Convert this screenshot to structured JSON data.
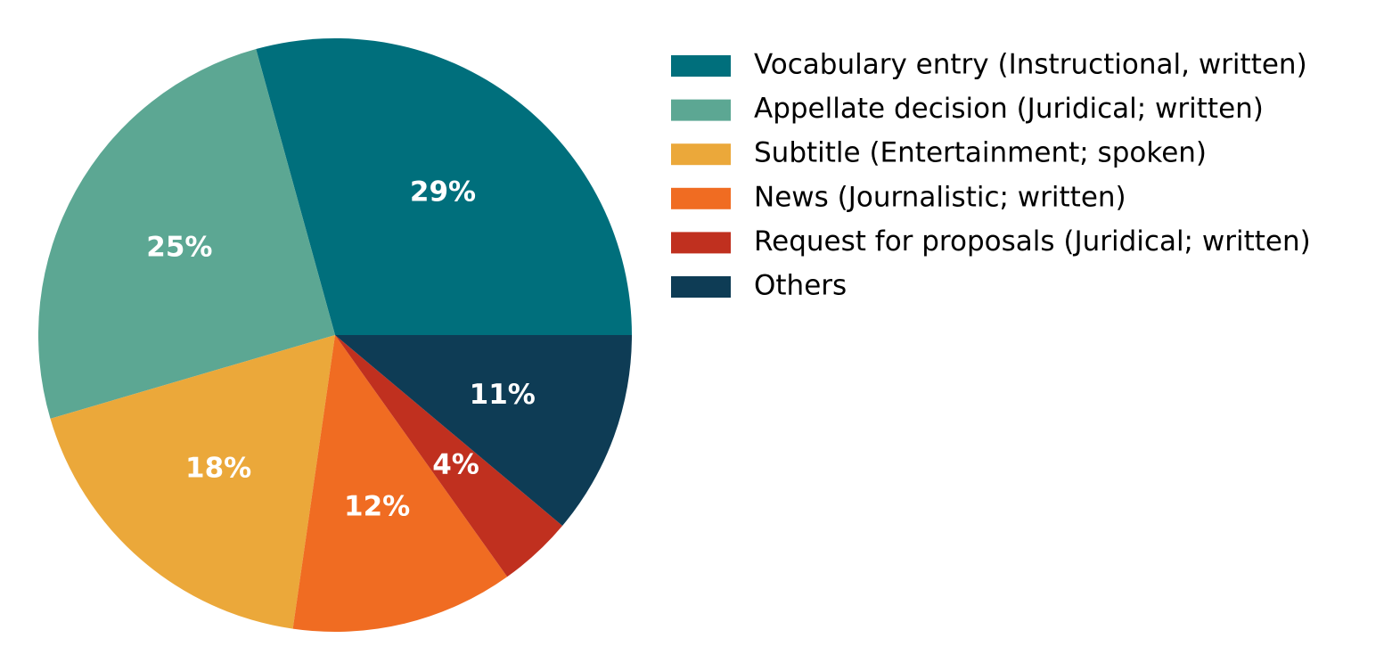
{
  "chart_data": {
    "type": "pie",
    "categories": [
      "Vocabulary entry (Instructional, written)",
      "Appellate decision (Juridical; written)",
      "Subtitle (Entertainment; spoken)",
      "News (Journalistic; written)",
      "Request for proposals (Juridical; written)",
      "Others"
    ],
    "values": [
      29,
      25,
      18,
      12,
      4,
      11
    ],
    "value_labels": [
      "29%",
      "25%",
      "18%",
      "12%",
      "4%",
      "11%"
    ],
    "colors": [
      "#006f7c",
      "#5ca793",
      "#eba83a",
      "#f06c22",
      "#c0301f",
      "#0e3c55"
    ],
    "legend": "right"
  }
}
